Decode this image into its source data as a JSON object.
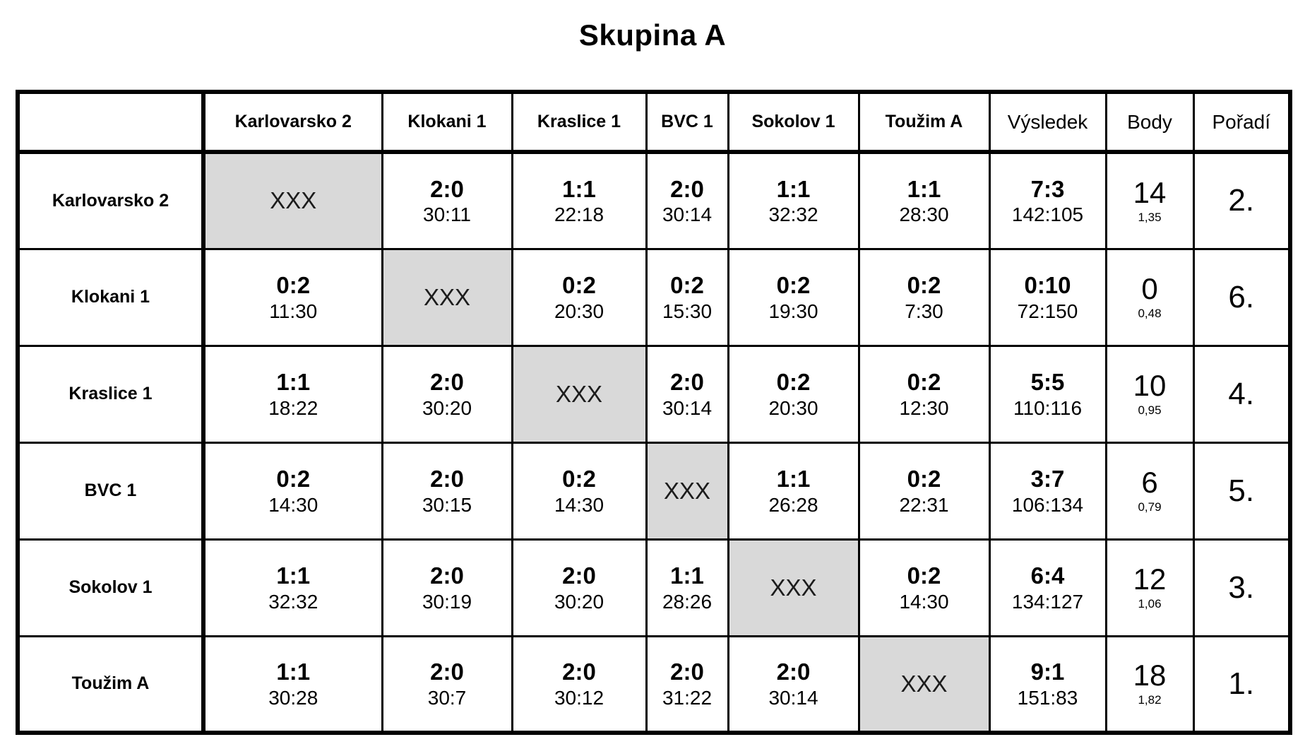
{
  "title": "Skupina A",
  "colors": {
    "diagonal_cell": "#d9d9d9",
    "border": "#000000",
    "text": "#000000"
  },
  "table": {
    "self_marker": "XXX",
    "opponent_columns": [
      "Karlovarsko 2",
      "Klokani 1",
      "Kraslice 1",
      "BVC 1",
      "Sokolov 1",
      "Toužim A"
    ],
    "summary_columns": {
      "result": "Výsledek",
      "points": "Body",
      "rank": "Pořadí"
    },
    "rows": [
      {
        "team": "Karlovarsko 2",
        "matches": [
          {
            "self": true
          },
          {
            "score": "2:0",
            "detail": "30:11"
          },
          {
            "score": "1:1",
            "detail": "22:18"
          },
          {
            "score": "2:0",
            "detail": "30:14"
          },
          {
            "score": "1:1",
            "detail": "32:32"
          },
          {
            "score": "1:1",
            "detail": "28:30"
          }
        ],
        "result": {
          "score": "7:3",
          "detail": "142:105"
        },
        "points": {
          "value": "14",
          "ratio": "1,35"
        },
        "rank": "2."
      },
      {
        "team": "Klokani 1",
        "matches": [
          {
            "score": "0:2",
            "detail": "11:30"
          },
          {
            "self": true
          },
          {
            "score": "0:2",
            "detail": "20:30"
          },
          {
            "score": "0:2",
            "detail": "15:30"
          },
          {
            "score": "0:2",
            "detail": "19:30"
          },
          {
            "score": "0:2",
            "detail": "7:30"
          }
        ],
        "result": {
          "score": "0:10",
          "detail": "72:150"
        },
        "points": {
          "value": "0",
          "ratio": "0,48"
        },
        "rank": "6."
      },
      {
        "team": "Kraslice 1",
        "matches": [
          {
            "score": "1:1",
            "detail": "18:22"
          },
          {
            "score": "2:0",
            "detail": "30:20"
          },
          {
            "self": true
          },
          {
            "score": "2:0",
            "detail": "30:14"
          },
          {
            "score": "0:2",
            "detail": "20:30"
          },
          {
            "score": "0:2",
            "detail": "12:30"
          }
        ],
        "result": {
          "score": "5:5",
          "detail": "110:116"
        },
        "points": {
          "value": "10",
          "ratio": "0,95"
        },
        "rank": "4."
      },
      {
        "team": "BVC 1",
        "matches": [
          {
            "score": "0:2",
            "detail": "14:30"
          },
          {
            "score": "2:0",
            "detail": "30:15"
          },
          {
            "score": "0:2",
            "detail": "14:30"
          },
          {
            "self": true
          },
          {
            "score": "1:1",
            "detail": "26:28"
          },
          {
            "score": "0:2",
            "detail": "22:31"
          }
        ],
        "result": {
          "score": "3:7",
          "detail": "106:134"
        },
        "points": {
          "value": "6",
          "ratio": "0,79"
        },
        "rank": "5."
      },
      {
        "team": "Sokolov 1",
        "matches": [
          {
            "score": "1:1",
            "detail": "32:32"
          },
          {
            "score": "2:0",
            "detail": "30:19"
          },
          {
            "score": "2:0",
            "detail": "30:20"
          },
          {
            "score": "1:1",
            "detail": "28:26"
          },
          {
            "self": true
          },
          {
            "score": "0:2",
            "detail": "14:30"
          }
        ],
        "result": {
          "score": "6:4",
          "detail": "134:127"
        },
        "points": {
          "value": "12",
          "ratio": "1,06"
        },
        "rank": "3."
      },
      {
        "team": "Toužim A",
        "matches": [
          {
            "score": "1:1",
            "detail": "30:28"
          },
          {
            "score": "2:0",
            "detail": "30:7"
          },
          {
            "score": "2:0",
            "detail": "30:12"
          },
          {
            "score": "2:0",
            "detail": "31:22"
          },
          {
            "score": "2:0",
            "detail": "30:14"
          },
          {
            "self": true
          }
        ],
        "result": {
          "score": "9:1",
          "detail": "151:83"
        },
        "points": {
          "value": "18",
          "ratio": "1,82"
        },
        "rank": "1."
      }
    ]
  }
}
